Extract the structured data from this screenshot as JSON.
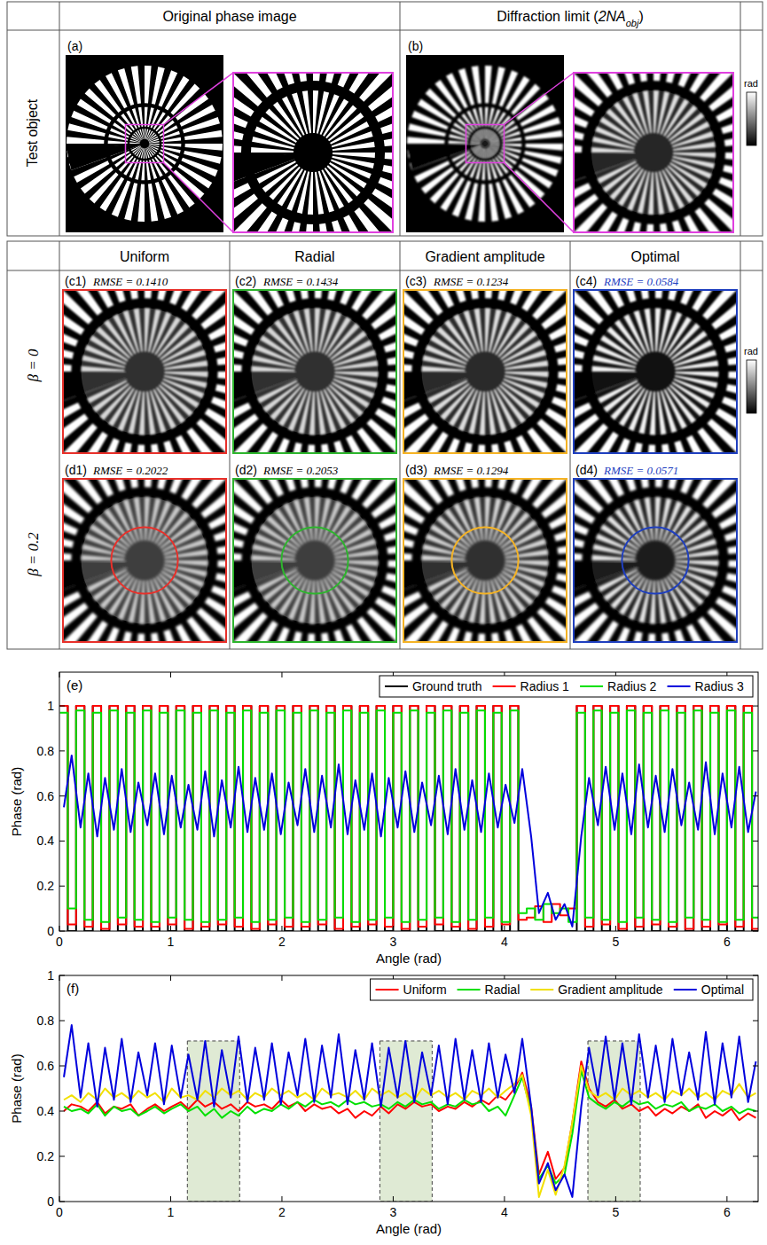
{
  "figure": {
    "top_table": {
      "row_label": "Test object",
      "column_1": "Original phase image",
      "column_2": [
        "Diffraction limit (",
        "2NA",
        "obj",
        ")"
      ],
      "panels": [
        "(a)",
        "(b)"
      ],
      "colorbar_label": "rad"
    },
    "bottom_table": {
      "columns": [
        "Uniform",
        "Radial",
        "Gradient amplitude",
        "Optimal"
      ],
      "colors": [
        "#e8302a",
        "#2db52d",
        "#f5b324",
        "#1f3fbf"
      ],
      "colorbar_label": "rad",
      "rows": [
        {
          "label": "β = 0",
          "panels": [
            {
              "label": "(c1)",
              "rmse": "RMSE = 0.1410"
            },
            {
              "label": "(c2)",
              "rmse": "RMSE = 0.1434"
            },
            {
              "label": "(c3)",
              "rmse": "RMSE = 0.1234"
            },
            {
              "label": "(c4)",
              "rmse": "RMSE = 0.0584"
            }
          ]
        },
        {
          "label": "β = 0.2",
          "panels": [
            {
              "label": "(d1)",
              "rmse": "RMSE = 0.2022"
            },
            {
              "label": "(d2)",
              "rmse": "RMSE = 0.2053"
            },
            {
              "label": "(d3)",
              "rmse": "RMSE = 0.1294"
            },
            {
              "label": "(d4)",
              "rmse": "RMSE = 0.0571"
            }
          ]
        }
      ]
    }
  },
  "chart_data": [
    {
      "type": "line",
      "title": "(e)",
      "x_label": "Angle (rad)",
      "y_label": "Phase (rad)",
      "x": [
        0.04,
        0.11,
        0.19,
        0.26,
        0.34,
        0.41,
        0.49,
        0.56,
        0.64,
        0.71,
        0.79,
        0.86,
        0.94,
        1.01,
        1.09,
        1.16,
        1.24,
        1.31,
        1.39,
        1.46,
        1.54,
        1.61,
        1.69,
        1.76,
        1.84,
        1.91,
        1.99,
        2.06,
        2.14,
        2.21,
        2.29,
        2.36,
        2.44,
        2.51,
        2.59,
        2.66,
        2.74,
        2.81,
        2.89,
        2.96,
        3.04,
        3.11,
        3.19,
        3.26,
        3.34,
        3.41,
        3.49,
        3.56,
        3.64,
        3.71,
        3.79,
        3.86,
        3.94,
        4.01,
        4.09,
        4.16,
        4.24,
        4.31,
        4.39,
        4.46,
        4.54,
        4.61,
        4.69,
        4.76,
        4.84,
        4.91,
        4.99,
        5.06,
        5.14,
        5.21,
        5.29,
        5.36,
        5.44,
        5.51,
        5.59,
        5.66,
        5.74,
        5.81,
        5.89,
        5.96,
        6.04,
        6.11,
        6.19,
        6.26
      ],
      "xlim": [
        0,
        6.28
      ],
      "xticks": [
        0,
        1,
        2,
        3,
        4,
        5,
        6
      ],
      "ylim": [
        0,
        1.15
      ],
      "yticks": [
        0,
        0.2,
        0.4,
        0.6,
        0.8,
        1
      ],
      "grid": false,
      "legend": "top-right",
      "series": [
        {
          "name": "Ground truth",
          "color": "#000000",
          "line_style": "step",
          "values": [
            1,
            0,
            1,
            0,
            1,
            0,
            1,
            0,
            1,
            0,
            1,
            0,
            1,
            0,
            1,
            0,
            1,
            0,
            1,
            0,
            1,
            0,
            1,
            0,
            1,
            0,
            1,
            0,
            1,
            0,
            1,
            0,
            1,
            0,
            1,
            0,
            1,
            0,
            1,
            0,
            1,
            0,
            1,
            0,
            1,
            0,
            1,
            0,
            1,
            0,
            1,
            0,
            1,
            0,
            1,
            0,
            0,
            0,
            0,
            0,
            0,
            0,
            1,
            0,
            1,
            0,
            1,
            0,
            1,
            0,
            1,
            0,
            1,
            0,
            1,
            0,
            1,
            0,
            1,
            0,
            1,
            0,
            1,
            0
          ]
        },
        {
          "name": "Radius 1",
          "color": "#ff0000",
          "line_style": "step",
          "values": [
            1,
            0.03,
            1,
            0.02,
            1,
            0.01,
            1,
            0.03,
            1,
            0.02,
            1,
            0.02,
            1,
            0.03,
            1,
            0.01,
            1,
            0.02,
            1,
            0.03,
            1,
            0.02,
            1,
            0.01,
            1,
            0.03,
            1,
            0.02,
            1,
            0.02,
            1,
            0.03,
            1,
            0.01,
            1,
            0.02,
            1,
            0.03,
            1,
            0.02,
            1,
            0.01,
            1,
            0.02,
            1,
            0.03,
            1,
            0.02,
            1,
            0.01,
            1,
            0.02,
            1,
            0.03,
            1,
            0.05,
            0.06,
            0.11,
            0.04,
            0.12,
            0.07,
            0.1,
            1,
            0.02,
            1,
            0.03,
            1,
            0.01,
            1,
            0.02,
            1,
            0.03,
            1,
            0.02,
            1,
            0.01,
            1,
            0.02,
            1,
            0.03,
            1,
            0.02,
            1,
            0.01
          ]
        },
        {
          "name": "Radius 2",
          "color": "#00e000",
          "line_style": "step",
          "values": [
            0.97,
            0.1,
            0.98,
            0.05,
            0.97,
            0.04,
            0.98,
            0.06,
            0.97,
            0.05,
            0.98,
            0.04,
            0.97,
            0.06,
            0.98,
            0.05,
            0.97,
            0.04,
            0.98,
            0.05,
            0.97,
            0.06,
            0.98,
            0.04,
            0.97,
            0.05,
            0.98,
            0.06,
            0.97,
            0.04,
            0.98,
            0.05,
            0.97,
            0.06,
            0.98,
            0.04,
            0.97,
            0.05,
            0.98,
            0.06,
            0.97,
            0.04,
            0.98,
            0.05,
            0.97,
            0.06,
            0.98,
            0.04,
            0.97,
            0.05,
            0.98,
            0.06,
            0.97,
            0.04,
            0.98,
            0.08,
            0.1,
            0.05,
            0.12,
            0.08,
            0.1,
            0.04,
            0.97,
            0.06,
            0.98,
            0.05,
            0.97,
            0.04,
            0.98,
            0.06,
            0.97,
            0.05,
            0.98,
            0.04,
            0.97,
            0.06,
            0.98,
            0.05,
            0.97,
            0.04,
            0.98,
            0.05,
            0.97,
            0.06
          ]
        },
        {
          "name": "Radius 3",
          "color": "#0000dd",
          "line_style": "solid",
          "values": [
            0.55,
            0.78,
            0.46,
            0.7,
            0.42,
            0.68,
            0.45,
            0.72,
            0.44,
            0.66,
            0.47,
            0.7,
            0.43,
            0.69,
            0.46,
            0.65,
            0.45,
            0.71,
            0.42,
            0.67,
            0.46,
            0.73,
            0.44,
            0.68,
            0.45,
            0.7,
            0.43,
            0.66,
            0.47,
            0.72,
            0.44,
            0.69,
            0.46,
            0.74,
            0.43,
            0.67,
            0.45,
            0.7,
            0.42,
            0.68,
            0.46,
            0.71,
            0.44,
            0.66,
            0.47,
            0.69,
            0.43,
            0.72,
            0.45,
            0.67,
            0.44,
            0.7,
            0.46,
            0.65,
            0.48,
            0.72,
            0.42,
            0.08,
            0.17,
            0.05,
            0.12,
            0.02,
            0.42,
            0.68,
            0.47,
            0.73,
            0.45,
            0.7,
            0.43,
            0.74,
            0.46,
            0.69,
            0.44,
            0.72,
            0.47,
            0.66,
            0.45,
            0.75,
            0.43,
            0.7,
            0.46,
            0.73,
            0.44,
            0.62
          ]
        }
      ]
    },
    {
      "type": "line",
      "title": "(f)",
      "x_label": "Angle (rad)",
      "y_label": "Phase (rad)",
      "x": [
        0.04,
        0.11,
        0.19,
        0.26,
        0.34,
        0.41,
        0.49,
        0.56,
        0.64,
        0.71,
        0.79,
        0.86,
        0.94,
        1.01,
        1.09,
        1.16,
        1.24,
        1.31,
        1.39,
        1.46,
        1.54,
        1.61,
        1.69,
        1.76,
        1.84,
        1.91,
        1.99,
        2.06,
        2.14,
        2.21,
        2.29,
        2.36,
        2.44,
        2.51,
        2.59,
        2.66,
        2.74,
        2.81,
        2.89,
        2.96,
        3.04,
        3.11,
        3.19,
        3.26,
        3.34,
        3.41,
        3.49,
        3.56,
        3.64,
        3.71,
        3.79,
        3.86,
        3.94,
        4.01,
        4.09,
        4.16,
        4.24,
        4.31,
        4.39,
        4.46,
        4.54,
        4.61,
        4.69,
        4.76,
        4.84,
        4.91,
        4.99,
        5.06,
        5.14,
        5.21,
        5.29,
        5.36,
        5.44,
        5.51,
        5.59,
        5.66,
        5.74,
        5.81,
        5.89,
        5.96,
        6.04,
        6.11,
        6.19,
        6.26
      ],
      "xlim": [
        0,
        6.28
      ],
      "xticks": [
        0,
        1,
        2,
        3,
        4,
        5,
        6
      ],
      "ylim": [
        0,
        1
      ],
      "yticks": [
        0,
        0.2,
        0.4,
        0.6,
        0.8,
        1
      ],
      "grid": false,
      "legend": "top-right",
      "shaded_regions": [
        {
          "x": [
            1.15,
            1.62
          ],
          "y": [
            0,
            0.71
          ]
        },
        {
          "x": [
            2.88,
            3.35
          ],
          "y": [
            0,
            0.71
          ]
        },
        {
          "x": [
            4.75,
            5.22
          ],
          "y": [
            0,
            0.71
          ]
        }
      ],
      "series": [
        {
          "name": "Uniform",
          "color": "#ff0000",
          "line_style": "solid",
          "values": [
            0.4,
            0.43,
            0.42,
            0.4,
            0.44,
            0.39,
            0.42,
            0.41,
            0.43,
            0.38,
            0.41,
            0.43,
            0.4,
            0.42,
            0.44,
            0.41,
            0.45,
            0.42,
            0.44,
            0.41,
            0.43,
            0.4,
            0.44,
            0.42,
            0.43,
            0.41,
            0.45,
            0.42,
            0.44,
            0.4,
            0.43,
            0.41,
            0.42,
            0.39,
            0.41,
            0.37,
            0.4,
            0.38,
            0.42,
            0.39,
            0.43,
            0.41,
            0.44,
            0.42,
            0.43,
            0.4,
            0.42,
            0.41,
            0.44,
            0.42,
            0.45,
            0.43,
            0.47,
            0.45,
            0.5,
            0.57,
            0.42,
            0.12,
            0.22,
            0.1,
            0.15,
            0.35,
            0.62,
            0.5,
            0.44,
            0.42,
            0.45,
            0.41,
            0.43,
            0.4,
            0.42,
            0.38,
            0.41,
            0.39,
            0.42,
            0.4,
            0.43,
            0.37,
            0.4,
            0.38,
            0.41,
            0.36,
            0.39,
            0.37
          ]
        },
        {
          "name": "Radial",
          "color": "#00e000",
          "line_style": "solid",
          "values": [
            0.42,
            0.4,
            0.41,
            0.39,
            0.43,
            0.38,
            0.42,
            0.4,
            0.41,
            0.38,
            0.4,
            0.42,
            0.39,
            0.41,
            0.43,
            0.4,
            0.42,
            0.38,
            0.41,
            0.37,
            0.4,
            0.38,
            0.42,
            0.39,
            0.41,
            0.4,
            0.43,
            0.41,
            0.44,
            0.42,
            0.45,
            0.43,
            0.44,
            0.42,
            0.45,
            0.43,
            0.44,
            0.42,
            0.43,
            0.41,
            0.44,
            0.42,
            0.45,
            0.43,
            0.44,
            0.41,
            0.43,
            0.42,
            0.45,
            0.43,
            0.44,
            0.4,
            0.42,
            0.38,
            0.47,
            0.55,
            0.4,
            0.1,
            0.16,
            0.08,
            0.12,
            0.3,
            0.58,
            0.46,
            0.43,
            0.41,
            0.44,
            0.42,
            0.45,
            0.43,
            0.44,
            0.41,
            0.43,
            0.42,
            0.44,
            0.4,
            0.42,
            0.41,
            0.43,
            0.4,
            0.42,
            0.39,
            0.41,
            0.4
          ]
        },
        {
          "name": "Gradient amplitude",
          "color": "#f2e000",
          "line_style": "solid",
          "values": [
            0.45,
            0.47,
            0.44,
            0.48,
            0.45,
            0.5,
            0.46,
            0.48,
            0.45,
            0.49,
            0.46,
            0.48,
            0.44,
            0.5,
            0.46,
            0.47,
            0.45,
            0.49,
            0.46,
            0.5,
            0.47,
            0.49,
            0.45,
            0.48,
            0.46,
            0.5,
            0.47,
            0.49,
            0.46,
            0.48,
            0.45,
            0.5,
            0.47,
            0.48,
            0.46,
            0.49,
            0.45,
            0.5,
            0.47,
            0.49,
            0.46,
            0.48,
            0.45,
            0.5,
            0.47,
            0.49,
            0.46,
            0.48,
            0.45,
            0.49,
            0.47,
            0.5,
            0.46,
            0.49,
            0.52,
            0.56,
            0.38,
            0.02,
            0.14,
            0.03,
            0.16,
            0.35,
            0.6,
            0.49,
            0.46,
            0.48,
            0.45,
            0.5,
            0.47,
            0.49,
            0.46,
            0.48,
            0.45,
            0.49,
            0.47,
            0.5,
            0.46,
            0.48,
            0.45,
            0.49,
            0.47,
            0.52,
            0.46,
            0.48
          ]
        },
        {
          "name": "Optimal",
          "color": "#0000dd",
          "line_style": "solid",
          "values": [
            0.55,
            0.78,
            0.46,
            0.7,
            0.42,
            0.68,
            0.45,
            0.72,
            0.44,
            0.66,
            0.47,
            0.7,
            0.43,
            0.69,
            0.46,
            0.65,
            0.45,
            0.71,
            0.42,
            0.67,
            0.46,
            0.73,
            0.44,
            0.68,
            0.45,
            0.7,
            0.43,
            0.66,
            0.47,
            0.72,
            0.44,
            0.69,
            0.46,
            0.74,
            0.43,
            0.67,
            0.45,
            0.7,
            0.42,
            0.68,
            0.46,
            0.71,
            0.44,
            0.66,
            0.47,
            0.69,
            0.43,
            0.72,
            0.45,
            0.67,
            0.44,
            0.7,
            0.46,
            0.65,
            0.48,
            0.72,
            0.42,
            0.08,
            0.17,
            0.05,
            0.12,
            0.02,
            0.42,
            0.68,
            0.47,
            0.73,
            0.45,
            0.7,
            0.43,
            0.74,
            0.46,
            0.69,
            0.44,
            0.72,
            0.47,
            0.66,
            0.45,
            0.75,
            0.43,
            0.7,
            0.46,
            0.73,
            0.44,
            0.62
          ]
        }
      ]
    }
  ]
}
